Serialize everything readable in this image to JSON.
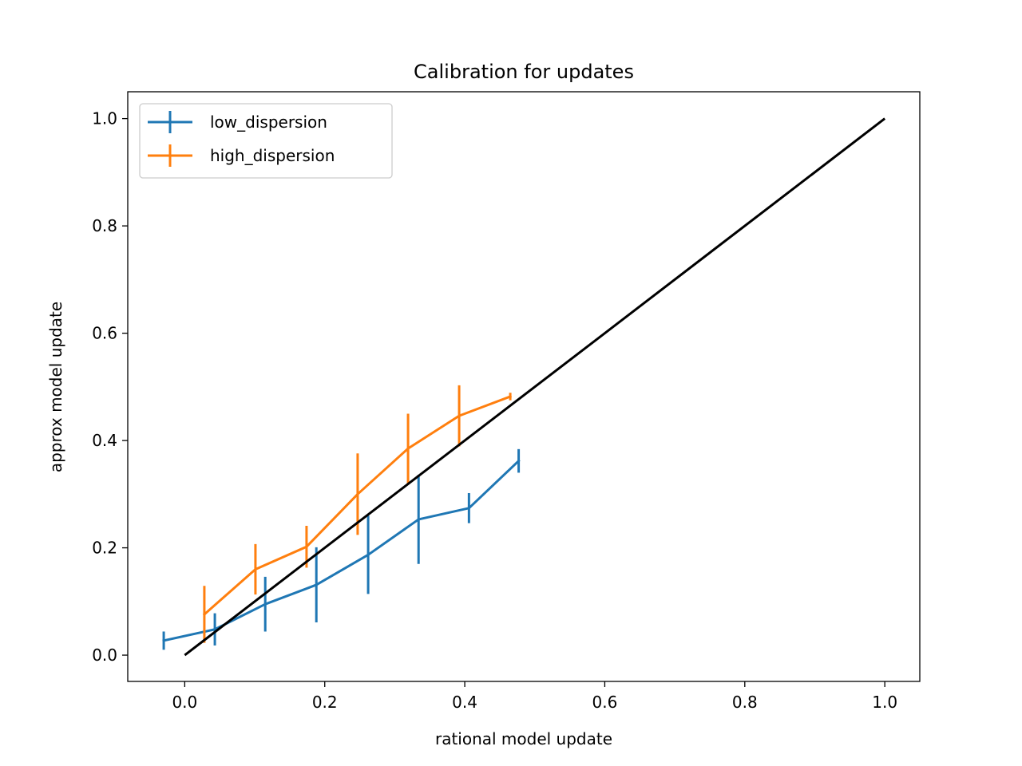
{
  "chart_data": {
    "type": "line",
    "title": "Calibration for updates",
    "xlabel": "rational model update",
    "ylabel": "approx model update",
    "xlim": [
      -0.0814,
      1.05
    ],
    "ylim": [
      -0.049,
      1.05
    ],
    "xticks": [
      0.0,
      0.2,
      0.4,
      0.6,
      0.8,
      1.0
    ],
    "yticks": [
      0.0,
      0.2,
      0.4,
      0.6,
      0.8,
      1.0
    ],
    "tick_format": "0.0",
    "grid": false,
    "legend_position": "top-left",
    "series": [
      {
        "name": "low_dispersion",
        "color": "#1f77b4",
        "x": [
          -0.03,
          0.043,
          0.115,
          0.188,
          0.262,
          0.334,
          0.406,
          0.477
        ],
        "y": [
          0.027,
          0.048,
          0.095,
          0.131,
          0.187,
          0.253,
          0.274,
          0.362
        ],
        "yerr": [
          0.017,
          0.03,
          0.051,
          0.07,
          0.073,
          0.083,
          0.028,
          0.022
        ]
      },
      {
        "name": "high_dispersion",
        "color": "#ff7f0e",
        "x": [
          0.028,
          0.101,
          0.174,
          0.247,
          0.319,
          0.392,
          0.465
        ],
        "y": [
          0.076,
          0.16,
          0.202,
          0.3,
          0.385,
          0.446,
          0.482
        ],
        "yerr": [
          0.053,
          0.047,
          0.039,
          0.076,
          0.065,
          0.057,
          0.007
        ]
      }
    ],
    "reference_line": {
      "color": "#000000",
      "x": [
        0.0,
        1.0
      ],
      "y": [
        0.0,
        1.0
      ]
    }
  }
}
